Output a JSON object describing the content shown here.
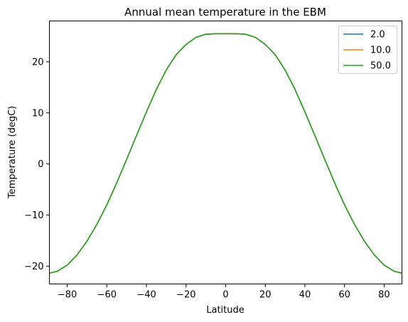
{
  "chart_data": {
    "type": "line",
    "title": "Annual mean temperature in the EBM",
    "xlabel": "Latitude",
    "ylabel": "Temperature (degC)",
    "xlim": [
      -89,
      89
    ],
    "ylim": [
      -23.5,
      28
    ],
    "xticks": [
      -80,
      -60,
      -40,
      -20,
      0,
      20,
      40,
      60,
      80
    ],
    "yticks": [
      -20,
      -10,
      0,
      10,
      20
    ],
    "xtick_labels": [
      "−80",
      "−60",
      "−40",
      "−20",
      "0",
      "20",
      "40",
      "60",
      "80"
    ],
    "ytick_labels": [
      "−20",
      "−10",
      "0",
      "10",
      "20"
    ],
    "grid": false,
    "legend_position": "top-right",
    "x": [
      -89,
      -85,
      -80,
      -75,
      -70,
      -65,
      -60,
      -55,
      -50,
      -45,
      -40,
      -35,
      -30,
      -25,
      -20,
      -15,
      -10,
      -5,
      0,
      5,
      10,
      15,
      20,
      25,
      30,
      35,
      40,
      45,
      50,
      55,
      60,
      65,
      70,
      75,
      80,
      85,
      89
    ],
    "series": [
      {
        "name": "2.0",
        "color": "#1f77b4",
        "values": [
          -21.4,
          -21.0,
          -19.8,
          -17.8,
          -15.1,
          -11.8,
          -8.0,
          -3.7,
          0.9,
          5.6,
          10.2,
          14.6,
          18.4,
          21.4,
          23.4,
          24.8,
          25.4,
          25.5,
          25.5,
          25.5,
          25.4,
          24.8,
          23.4,
          21.4,
          18.4,
          14.6,
          10.2,
          5.6,
          0.9,
          -3.7,
          -8.0,
          -11.8,
          -15.1,
          -17.8,
          -19.8,
          -21.0,
          -21.4
        ]
      },
      {
        "name": "10.0",
        "color": "#ff7f0e",
        "values": [
          -21.4,
          -21.0,
          -19.8,
          -17.8,
          -15.1,
          -11.8,
          -8.0,
          -3.7,
          0.9,
          5.6,
          10.2,
          14.6,
          18.4,
          21.4,
          23.4,
          24.8,
          25.4,
          25.5,
          25.5,
          25.5,
          25.4,
          24.8,
          23.4,
          21.4,
          18.4,
          14.6,
          10.2,
          5.6,
          0.9,
          -3.7,
          -8.0,
          -11.8,
          -15.1,
          -17.8,
          -19.8,
          -21.0,
          -21.4
        ]
      },
      {
        "name": "50.0",
        "color": "#2ca02c",
        "values": [
          -21.4,
          -21.0,
          -19.8,
          -17.8,
          -15.1,
          -11.8,
          -8.0,
          -3.7,
          0.9,
          5.6,
          10.2,
          14.6,
          18.4,
          21.4,
          23.4,
          24.8,
          25.4,
          25.5,
          25.5,
          25.5,
          25.4,
          24.8,
          23.4,
          21.4,
          18.4,
          14.6,
          10.2,
          5.6,
          0.9,
          -3.7,
          -8.0,
          -11.8,
          -15.1,
          -17.8,
          -19.8,
          -21.0,
          -21.4
        ]
      }
    ]
  }
}
